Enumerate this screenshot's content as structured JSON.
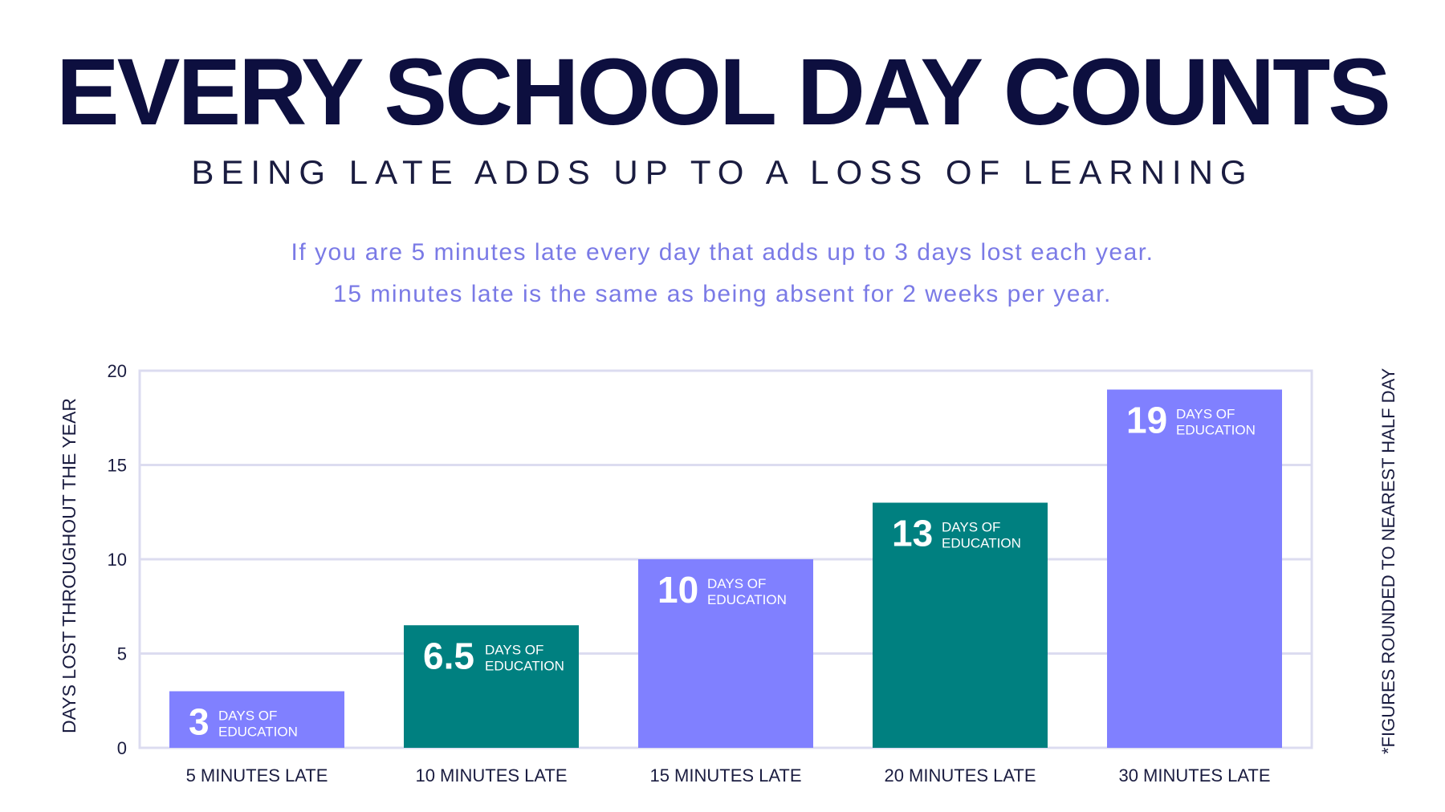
{
  "header": {
    "title": "EVERY SCHOOL DAY COUNTS",
    "subtitle": "BEING LATE ADDS UP TO A LOSS OF LEARNING",
    "note_line1": "If you are 5 minutes late every day that adds up to 3 days lost each year.",
    "note_line2": "15 minutes late is the same as being absent for 2 weeks per year."
  },
  "footnote": "*FIGURES ROUNDED TO NEAREST HALF DAY",
  "colors": {
    "title": "#0d0f3f",
    "note": "#7a7ae6",
    "bar_purple": "#8080ff",
    "bar_teal": "#008080",
    "grid": "#dcdcf0"
  },
  "chart_data": {
    "type": "bar",
    "title": "",
    "ylabel": "DAYS LOST THROUGHOUT THE YEAR",
    "xlabel": "",
    "categories": [
      "5 MINUTES LATE",
      "10 MINUTES LATE",
      "15 MINUTES LATE",
      "20 MINUTES LATE",
      "30 MINUTES LATE"
    ],
    "values": [
      3,
      6.5,
      10,
      13,
      19
    ],
    "value_labels": [
      "3",
      "6.5",
      "10",
      "13",
      "19"
    ],
    "bar_colors": [
      "#8080ff",
      "#008080",
      "#8080ff",
      "#008080",
      "#8080ff"
    ],
    "bar_label_suffix_line1": "DAYS    OF",
    "bar_label_suffix_line2": "EDUCATION",
    "ylim": [
      0,
      20
    ],
    "yticks": [
      0,
      5,
      10,
      15,
      20
    ],
    "grid": true,
    "legend": "none"
  }
}
